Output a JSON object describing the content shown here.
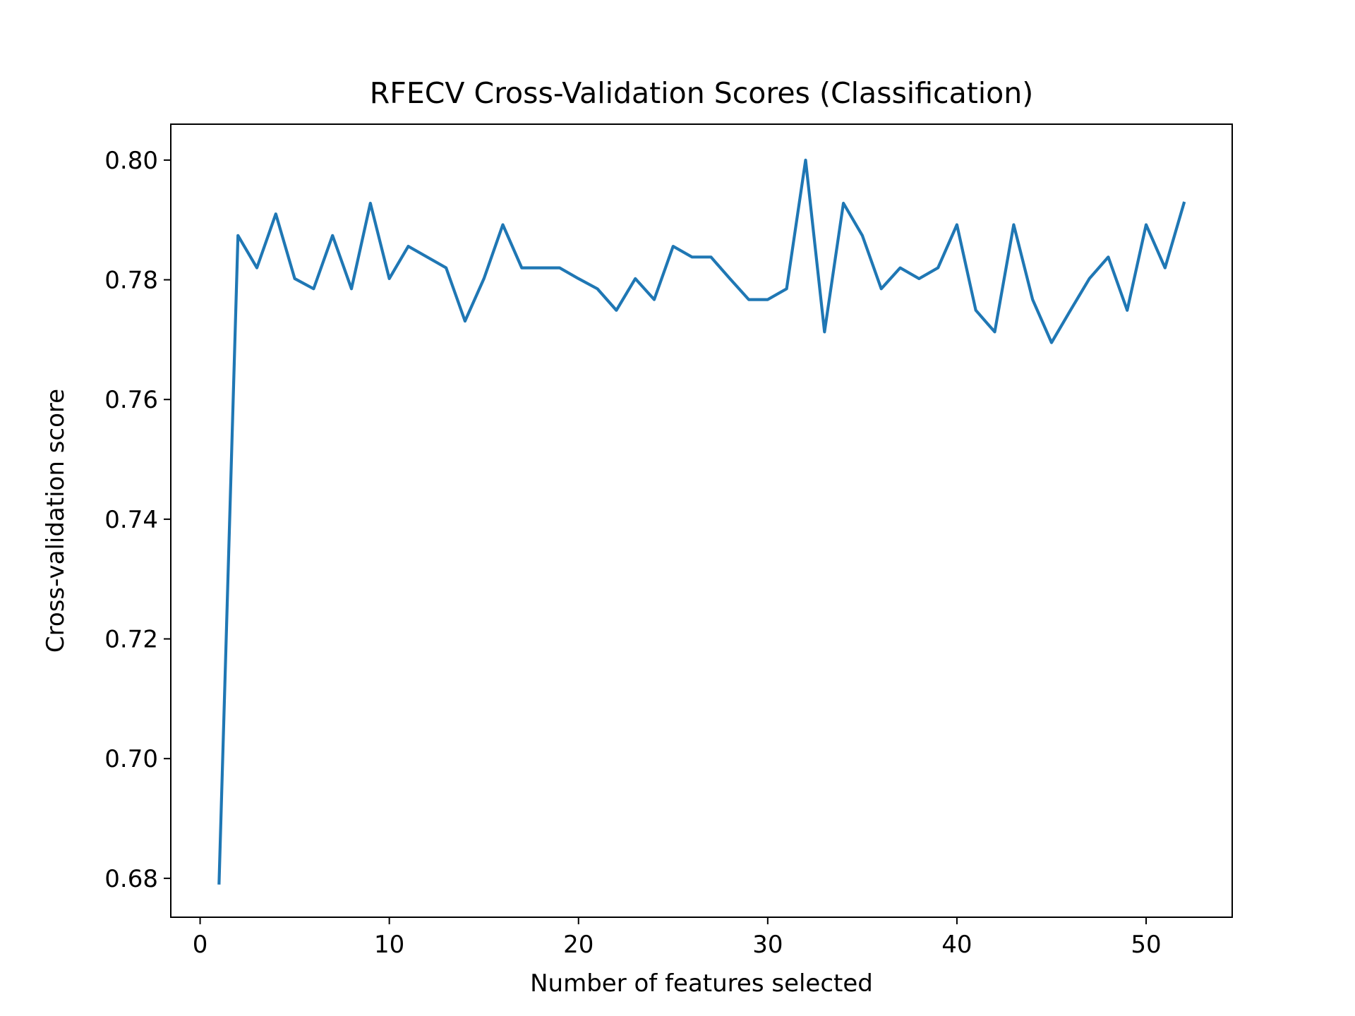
{
  "chart_data": {
    "type": "line",
    "title": "RFECV Cross-Validation Scores (Classification)",
    "xlabel": "Number of features selected",
    "ylabel": "Cross-validation score",
    "xlim": [
      -1.55,
      54.55
    ],
    "ylim": [
      0.6735,
      0.806
    ],
    "xticks": [
      0,
      10,
      20,
      30,
      40,
      50
    ],
    "xtick_labels": [
      "0",
      "10",
      "20",
      "30",
      "40",
      "50"
    ],
    "yticks": [
      0.68,
      0.7,
      0.72,
      0.74,
      0.76,
      0.78,
      0.8
    ],
    "ytick_labels": [
      "0.68",
      "0.70",
      "0.72",
      "0.74",
      "0.76",
      "0.78",
      "0.80"
    ],
    "grid": false,
    "series": [
      {
        "color": "#1f77b4",
        "x": [
          1,
          2,
          3,
          4,
          5,
          6,
          7,
          8,
          9,
          10,
          11,
          12,
          13,
          14,
          15,
          16,
          17,
          18,
          19,
          20,
          21,
          22,
          23,
          24,
          25,
          26,
          27,
          28,
          29,
          30,
          31,
          32,
          33,
          34,
          35,
          36,
          37,
          38,
          39,
          40,
          41,
          42,
          43,
          44,
          45,
          46,
          47,
          48,
          49,
          50,
          51,
          52
        ],
        "values": [
          0.6792,
          0.7874,
          0.782,
          0.791,
          0.7802,
          0.7785,
          0.7874,
          0.7785,
          0.7928,
          0.7802,
          0.7856,
          0.7838,
          0.782,
          0.7731,
          0.7802,
          0.7892,
          0.782,
          0.782,
          0.782,
          0.7802,
          0.7785,
          0.7749,
          0.7802,
          0.7767,
          0.7856,
          0.7838,
          0.7838,
          0.7802,
          0.7767,
          0.7767,
          0.7785,
          0.8,
          0.7713,
          0.7928,
          0.7874,
          0.7785,
          0.782,
          0.7802,
          0.782,
          0.7892,
          0.7749,
          0.7713,
          0.7892,
          0.7767,
          0.7695,
          0.7749,
          0.7802,
          0.7838,
          0.7749,
          0.7892,
          0.782,
          0.7928
        ]
      }
    ]
  }
}
